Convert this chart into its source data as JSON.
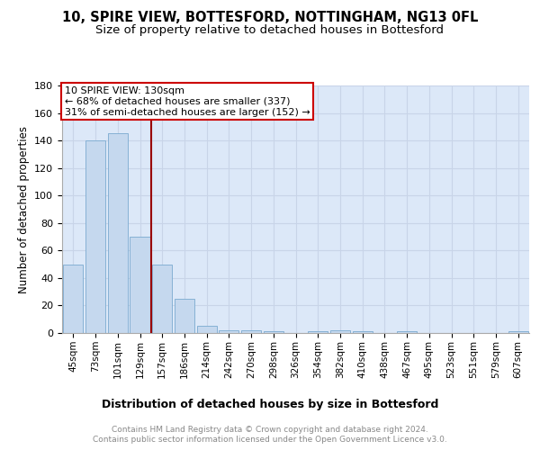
{
  "title": "10, SPIRE VIEW, BOTTESFORD, NOTTINGHAM, NG13 0FL",
  "subtitle": "Size of property relative to detached houses in Bottesford",
  "xlabel": "Distribution of detached houses by size in Bottesford",
  "ylabel": "Number of detached properties",
  "footer_line1": "Contains HM Land Registry data © Crown copyright and database right 2024.",
  "footer_line2": "Contains public sector information licensed under the Open Government Licence v3.0.",
  "categories": [
    "45sqm",
    "73sqm",
    "101sqm",
    "129sqm",
    "157sqm",
    "186sqm",
    "214sqm",
    "242sqm",
    "270sqm",
    "298sqm",
    "326sqm",
    "354sqm",
    "382sqm",
    "410sqm",
    "438sqm",
    "467sqm",
    "495sqm",
    "523sqm",
    "551sqm",
    "579sqm",
    "607sqm"
  ],
  "values": [
    50,
    140,
    145,
    70,
    50,
    25,
    5,
    2,
    2,
    1,
    0,
    1,
    2,
    1,
    0,
    1,
    0,
    0,
    0,
    0,
    1
  ],
  "bar_color": "#c5d8ee",
  "bar_edge_color": "#7aaad0",
  "vline_x_idx": 3.5,
  "vline_color": "#990000",
  "annotation_text": "10 SPIRE VIEW: 130sqm\n← 68% of detached houses are smaller (337)\n31% of semi-detached houses are larger (152) →",
  "annotation_box_color": "#ffffff",
  "annotation_box_edge_color": "#cc0000",
  "ylim": [
    0,
    180
  ],
  "yticks": [
    0,
    20,
    40,
    60,
    80,
    100,
    120,
    140,
    160,
    180
  ],
  "grid_color": "#c8d4e8",
  "bg_color": "#dce8f8",
  "title_fontsize": 10.5,
  "subtitle_fontsize": 9.5,
  "xlabel_fontsize": 9,
  "ylabel_fontsize": 8.5,
  "annotation_fontsize": 8,
  "tick_fontsize": 7.5,
  "ytick_fontsize": 8
}
